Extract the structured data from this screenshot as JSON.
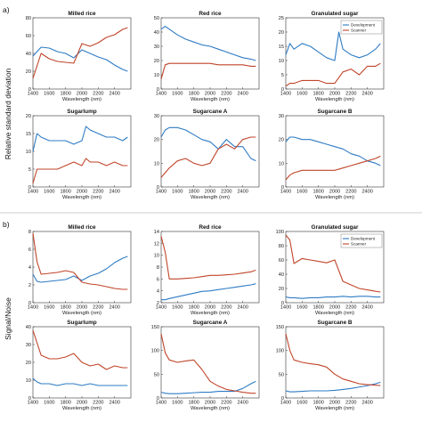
{
  "figure": {
    "panel_a_label": "a)",
    "panel_b_label": "b)",
    "panel_a_ylabel": "Relative standard deviation",
    "panel_b_ylabel": "Signal/Noise"
  },
  "colors": {
    "development": "#2e7bc4",
    "scanner": "#c0452a"
  },
  "chart_data": [
    {
      "type": "line",
      "group": "a",
      "title": "Milled rice",
      "xlabel": "Wavelength (nm)",
      "xlim": [
        1400,
        2600
      ],
      "xticks": [
        1400,
        1600,
        1800,
        2000,
        2200,
        2400
      ],
      "ylim": [
        0,
        80
      ],
      "yticks": [
        0,
        20,
        40,
        60,
        80
      ],
      "x": [
        1400,
        1500,
        1600,
        1700,
        1800,
        1900,
        2000,
        2100,
        2200,
        2300,
        2400,
        2500,
        2560
      ],
      "series": [
        {
          "values": [
            37,
            47,
            46,
            42,
            40,
            35,
            44,
            40,
            36,
            33,
            27,
            22,
            20
          ]
        },
        {
          "values": [
            12,
            40,
            34,
            31,
            30,
            29,
            51,
            48,
            52,
            58,
            61,
            67,
            69
          ]
        }
      ]
    },
    {
      "type": "line",
      "group": "a",
      "title": "Red rice",
      "xlabel": "Wavelength (nm)",
      "xlim": [
        1400,
        2600
      ],
      "xticks": [
        1400,
        1600,
        1800,
        2000,
        2200,
        2400
      ],
      "ylim": [
        0,
        50
      ],
      "yticks": [
        0,
        10,
        20,
        30,
        40,
        50
      ],
      "x": [
        1400,
        1450,
        1500,
        1600,
        1700,
        1800,
        1900,
        2000,
        2100,
        2200,
        2300,
        2400,
        2500,
        2560
      ],
      "series": [
        {
          "values": [
            42,
            44,
            42,
            38,
            35,
            33,
            31,
            30,
            28,
            26,
            24,
            22,
            21,
            20
          ]
        },
        {
          "values": [
            7,
            17,
            18,
            18,
            18,
            18,
            18,
            18,
            17,
            17,
            17,
            17,
            16,
            16
          ]
        }
      ]
    },
    {
      "type": "line",
      "group": "a",
      "title": "Granulated sugar",
      "xlabel": "Wavelength (nm)",
      "xlim": [
        1400,
        2600
      ],
      "xticks": [
        1400,
        1600,
        1800,
        2000,
        2200,
        2400
      ],
      "ylim": [
        0,
        25
      ],
      "yticks": [
        0,
        5,
        10,
        15,
        20,
        25
      ],
      "x": [
        1400,
        1450,
        1500,
        1600,
        1700,
        1800,
        1900,
        2000,
        2050,
        2100,
        2200,
        2300,
        2400,
        2500,
        2560
      ],
      "series": [
        {
          "values": [
            12,
            16,
            14,
            16,
            15,
            13,
            11,
            10,
            20,
            14,
            12,
            11,
            12,
            14,
            16
          ]
        },
        {
          "values": [
            1,
            2,
            2,
            3,
            3,
            3,
            2,
            2,
            4,
            6,
            7,
            5,
            8,
            8,
            9
          ]
        }
      ],
      "legend": {
        "position": "top-right",
        "entries": [
          "Development",
          "Scanner"
        ]
      }
    },
    {
      "type": "line",
      "group": "a",
      "title": "Sugarlump",
      "xlabel": "Wavelength (nm)",
      "xlim": [
        1400,
        2600
      ],
      "xticks": [
        1400,
        1600,
        1800,
        2000,
        2200,
        2400
      ],
      "ylim": [
        0,
        20
      ],
      "yticks": [
        0,
        5,
        10,
        15,
        20
      ],
      "x": [
        1400,
        1450,
        1500,
        1600,
        1700,
        1800,
        1900,
        2000,
        2050,
        2100,
        2200,
        2300,
        2400,
        2500,
        2560
      ],
      "series": [
        {
          "values": [
            10,
            15,
            14,
            13,
            13,
            13,
            12,
            13,
            17,
            16,
            15,
            14,
            14,
            13,
            14
          ]
        },
        {
          "values": [
            1,
            5,
            5,
            5,
            5,
            6,
            7,
            6,
            8,
            7,
            7,
            6,
            7,
            6,
            6
          ]
        }
      ]
    },
    {
      "type": "line",
      "group": "a",
      "title": "Sugarcane A",
      "xlabel": "Wavelength (nm)",
      "xlim": [
        1400,
        2600
      ],
      "xticks": [
        1400,
        1600,
        1800,
        2000,
        2200,
        2400
      ],
      "ylim": [
        0,
        30
      ],
      "yticks": [
        0,
        10,
        20,
        30
      ],
      "x": [
        1400,
        1450,
        1500,
        1600,
        1700,
        1800,
        1900,
        2000,
        2100,
        2200,
        2300,
        2400,
        2500,
        2560
      ],
      "series": [
        {
          "values": [
            21,
            24,
            25,
            25,
            24,
            22,
            20,
            19,
            16,
            20,
            17,
            17,
            12,
            11
          ]
        },
        {
          "values": [
            4,
            6,
            8,
            11,
            12,
            10,
            9,
            10,
            16,
            18,
            16,
            20,
            21,
            21
          ]
        }
      ]
    },
    {
      "type": "line",
      "group": "a",
      "title": "Sugarcane B",
      "xlabel": "Wavelength (nm)",
      "xlim": [
        1400,
        2600
      ],
      "xticks": [
        1400,
        1600,
        1800,
        2000,
        2200,
        2400
      ],
      "ylim": [
        0,
        30
      ],
      "yticks": [
        0,
        10,
        20,
        30
      ],
      "x": [
        1400,
        1450,
        1500,
        1600,
        1700,
        1800,
        1900,
        2000,
        2100,
        2200,
        2300,
        2400,
        2500,
        2560
      ],
      "series": [
        {
          "values": [
            19,
            21,
            21,
            20,
            20,
            19,
            18,
            17,
            16,
            14,
            13,
            11,
            10,
            9
          ]
        },
        {
          "values": [
            3,
            5,
            6,
            7,
            7,
            7,
            7,
            7,
            8,
            9,
            10,
            11,
            12,
            13
          ]
        }
      ]
    },
    {
      "type": "line",
      "group": "b",
      "title": "Milled rice",
      "xlabel": "Wavelength (nm)",
      "xlim": [
        1400,
        2600
      ],
      "xticks": [
        1400,
        1600,
        1800,
        2000,
        2200,
        2400
      ],
      "ylim": [
        0,
        8
      ],
      "yticks": [
        0,
        2,
        4,
        6,
        8
      ],
      "x": [
        1400,
        1450,
        1500,
        1600,
        1700,
        1800,
        1900,
        2000,
        2100,
        2200,
        2300,
        2400,
        2500,
        2560
      ],
      "series": [
        {
          "values": [
            3.2,
            2.4,
            2.3,
            2.4,
            2.5,
            2.6,
            3.0,
            2.5,
            3.0,
            3.3,
            3.8,
            4.5,
            5.0,
            5.2
          ]
        },
        {
          "values": [
            7.8,
            4.6,
            3.2,
            3.3,
            3.4,
            3.6,
            3.4,
            2.3,
            2.1,
            2.0,
            1.8,
            1.6,
            1.5,
            1.5
          ]
        }
      ]
    },
    {
      "type": "line",
      "group": "b",
      "title": "Red rice",
      "xlabel": "Wavelength (nm)",
      "xlim": [
        1400,
        2600
      ],
      "xticks": [
        1400,
        1600,
        1800,
        2000,
        2200,
        2400
      ],
      "ylim": [
        2,
        14
      ],
      "yticks": [
        2,
        4,
        6,
        8,
        10,
        12,
        14
      ],
      "x": [
        1400,
        1450,
        1500,
        1600,
        1700,
        1800,
        1900,
        2000,
        2100,
        2200,
        2300,
        2400,
        2500,
        2560
      ],
      "series": [
        {
          "values": [
            2.5,
            2.5,
            2.7,
            3.0,
            3.3,
            3.6,
            3.9,
            4.0,
            4.2,
            4.4,
            4.6,
            4.8,
            5.0,
            5.2
          ]
        },
        {
          "values": [
            13.2,
            10.5,
            6.0,
            6.0,
            6.1,
            6.2,
            6.4,
            6.6,
            6.6,
            6.7,
            6.8,
            7.0,
            7.2,
            7.5
          ]
        }
      ]
    },
    {
      "type": "line",
      "group": "b",
      "title": "Granulated sugar",
      "xlabel": "Wavelength (nm)",
      "xlim": [
        1400,
        2600
      ],
      "xticks": [
        1400,
        1600,
        1800,
        2000,
        2200,
        2400
      ],
      "ylim": [
        0,
        100
      ],
      "yticks": [
        0,
        20,
        40,
        60,
        80,
        100
      ],
      "x": [
        1400,
        1450,
        1500,
        1600,
        1700,
        1800,
        1900,
        2000,
        2100,
        2200,
        2300,
        2400,
        2500,
        2560
      ],
      "series": [
        {
          "values": [
            8,
            7,
            7,
            6,
            7,
            7,
            8,
            8,
            9,
            8,
            9,
            9,
            8,
            8
          ]
        },
        {
          "values": [
            95,
            88,
            55,
            62,
            60,
            58,
            56,
            60,
            30,
            25,
            20,
            18,
            16,
            15
          ]
        }
      ],
      "legend": {
        "position": "top-right",
        "entries": [
          "Development",
          "Scanner"
        ]
      }
    },
    {
      "type": "line",
      "group": "b",
      "title": "Sugarlump",
      "xlabel": "Wavelength (nm)",
      "xlim": [
        1400,
        2600
      ],
      "xticks": [
        1400,
        1600,
        1800,
        2000,
        2200,
        2400
      ],
      "ylim": [
        0,
        40
      ],
      "yticks": [
        0,
        10,
        20,
        30,
        40
      ],
      "x": [
        1400,
        1450,
        1500,
        1600,
        1700,
        1800,
        1900,
        2000,
        2100,
        2200,
        2300,
        2400,
        2500,
        2560
      ],
      "series": [
        {
          "values": [
            11,
            9,
            8,
            8,
            7,
            8,
            8,
            7,
            8,
            7,
            7,
            7,
            7,
            7
          ]
        },
        {
          "values": [
            38,
            31,
            24,
            22,
            22,
            23,
            25,
            20,
            18,
            19,
            16,
            18,
            17,
            17
          ]
        }
      ]
    },
    {
      "type": "line",
      "group": "b",
      "title": "Sugarcane A",
      "xlabel": "Wavelength (nm)",
      "xlim": [
        1400,
        2600
      ],
      "xticks": [
        1400,
        1600,
        1800,
        2000,
        2200,
        2400
      ],
      "ylim": [
        0,
        150
      ],
      "yticks": [
        0,
        50,
        100,
        150
      ],
      "x": [
        1400,
        1450,
        1500,
        1600,
        1700,
        1800,
        1900,
        2000,
        2100,
        2200,
        2300,
        2400,
        2500,
        2560
      ],
      "series": [
        {
          "values": [
            12,
            10,
            9,
            9,
            10,
            11,
            12,
            12,
            14,
            14,
            14,
            20,
            30,
            35
          ]
        },
        {
          "values": [
            135,
            95,
            80,
            75,
            78,
            80,
            60,
            35,
            25,
            18,
            15,
            12,
            10,
            10
          ]
        }
      ]
    },
    {
      "type": "line",
      "group": "b",
      "title": "Sugarcane B",
      "xlabel": "Wavelength (nm)",
      "xlim": [
        1400,
        2600
      ],
      "xticks": [
        1400,
        1600,
        1800,
        2000,
        2200,
        2400
      ],
      "ylim": [
        0,
        150
      ],
      "yticks": [
        0,
        50,
        100,
        150
      ],
      "x": [
        1400,
        1450,
        1500,
        1600,
        1700,
        1800,
        1900,
        2000,
        2100,
        2200,
        2300,
        2400,
        2500,
        2560
      ],
      "series": [
        {
          "values": [
            15,
            13,
            13,
            14,
            15,
            15,
            15,
            16,
            18,
            20,
            23,
            26,
            30,
            33
          ]
        },
        {
          "values": [
            135,
            100,
            80,
            75,
            72,
            70,
            65,
            50,
            40,
            35,
            30,
            28,
            27,
            26
          ]
        }
      ]
    }
  ]
}
